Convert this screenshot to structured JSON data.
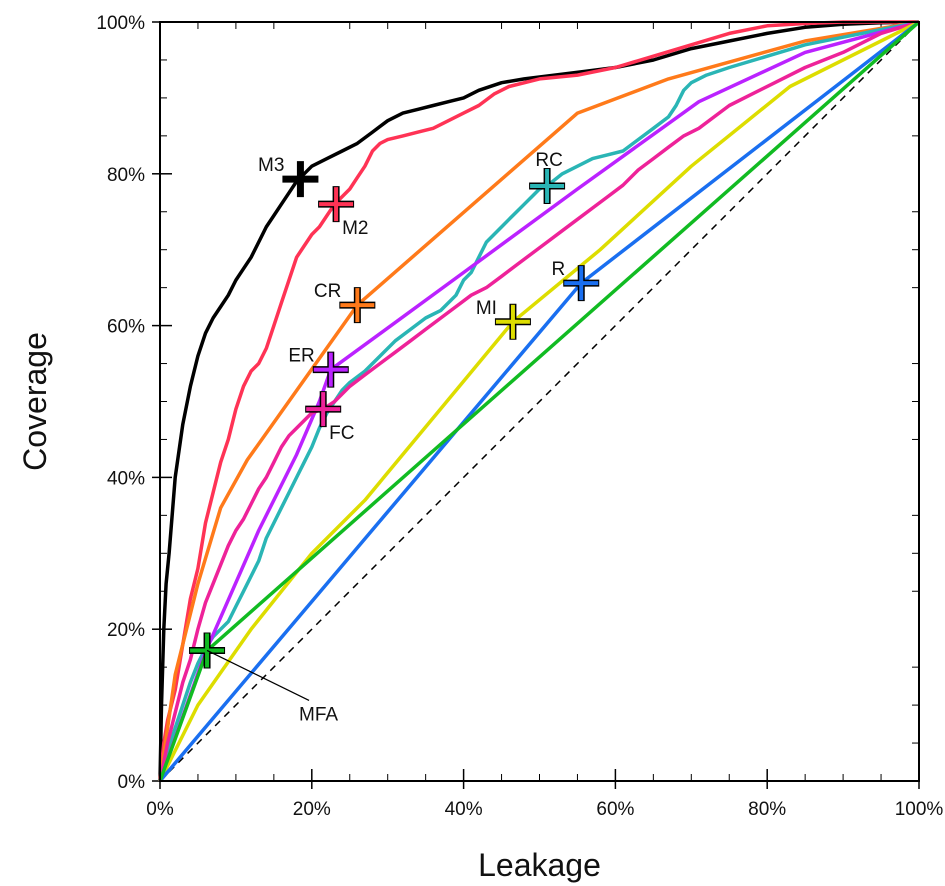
{
  "chart_data": {
    "type": "line",
    "xlabel": "Leakage",
    "ylabel": "Coverage",
    "xlim": [
      0,
      100
    ],
    "ylim": [
      0,
      100
    ],
    "x_ticks": [
      "0%",
      "20%",
      "40%",
      "60%",
      "80%",
      "100%"
    ],
    "y_ticks": [
      "0%",
      "20%",
      "40%",
      "60%",
      "80%",
      "100%"
    ],
    "grid": false,
    "reference_line": {
      "style": "dashed",
      "color": "#000000",
      "points": [
        [
          0,
          0
        ],
        [
          100,
          100
        ]
      ]
    },
    "series": [
      {
        "color": "#000000",
        "marker": {
          "label": "M3",
          "label_pos": "left",
          "x": 18.5,
          "y": 79.3
        },
        "points": [
          [
            0,
            0
          ],
          [
            0.2,
            10
          ],
          [
            0.5,
            20
          ],
          [
            0.8,
            26
          ],
          [
            1.2,
            30
          ],
          [
            2,
            40
          ],
          [
            3,
            47
          ],
          [
            4,
            52
          ],
          [
            5,
            56
          ],
          [
            6,
            59
          ],
          [
            7,
            61
          ],
          [
            8,
            62.5
          ],
          [
            9,
            64
          ],
          [
            10,
            66
          ],
          [
            11,
            67.5
          ],
          [
            12,
            69
          ],
          [
            13,
            71
          ],
          [
            14,
            73
          ],
          [
            15,
            74.5
          ],
          [
            16,
            76
          ],
          [
            17,
            77.5
          ],
          [
            18,
            79
          ],
          [
            19,
            80
          ],
          [
            20,
            81
          ],
          [
            22,
            82
          ],
          [
            24,
            83
          ],
          [
            26,
            84
          ],
          [
            28,
            85.5
          ],
          [
            30,
            87
          ],
          [
            32,
            88
          ],
          [
            34,
            88.5
          ],
          [
            36,
            89
          ],
          [
            38,
            89.5
          ],
          [
            40,
            90
          ],
          [
            42,
            91
          ],
          [
            45,
            92
          ],
          [
            48,
            92.5
          ],
          [
            52,
            93
          ],
          [
            56,
            93.5
          ],
          [
            60,
            94
          ],
          [
            65,
            95
          ],
          [
            70,
            96.5
          ],
          [
            75,
            97.5
          ],
          [
            80,
            98.5
          ],
          [
            85,
            99.3
          ],
          [
            90,
            99.7
          ],
          [
            95,
            99.9
          ],
          [
            100,
            100
          ]
        ]
      },
      {
        "color": "#ff3355",
        "marker": {
          "label": "M2",
          "label_pos": "below-right",
          "x": 23.2,
          "y": 76
        },
        "points": [
          [
            0,
            0
          ],
          [
            0.5,
            5
          ],
          [
            1,
            8
          ],
          [
            2,
            12
          ],
          [
            3,
            18
          ],
          [
            4,
            24
          ],
          [
            5,
            28
          ],
          [
            6,
            34
          ],
          [
            7,
            38
          ],
          [
            8,
            42
          ],
          [
            9,
            45
          ],
          [
            10,
            49
          ],
          [
            11,
            52
          ],
          [
            12,
            54
          ],
          [
            13,
            55
          ],
          [
            14,
            57
          ],
          [
            15,
            60
          ],
          [
            16,
            63
          ],
          [
            17,
            66
          ],
          [
            18,
            69
          ],
          [
            19,
            70.5
          ],
          [
            20,
            72
          ],
          [
            21,
            73
          ],
          [
            22,
            74.5
          ],
          [
            23,
            76
          ],
          [
            24,
            77
          ],
          [
            25,
            78
          ],
          [
            26,
            79.5
          ],
          [
            27,
            81
          ],
          [
            28,
            83
          ],
          [
            29,
            84
          ],
          [
            30,
            84.5
          ],
          [
            32,
            85
          ],
          [
            34,
            85.5
          ],
          [
            36,
            86
          ],
          [
            38,
            87
          ],
          [
            40,
            88
          ],
          [
            42,
            89
          ],
          [
            44,
            90.5
          ],
          [
            46,
            91.5
          ],
          [
            50,
            92.5
          ],
          [
            55,
            93
          ],
          [
            60,
            94
          ],
          [
            65,
            95.5
          ],
          [
            70,
            97
          ],
          [
            75,
            98.5
          ],
          [
            80,
            99.5
          ],
          [
            85,
            99.8
          ],
          [
            90,
            100
          ],
          [
            100,
            100
          ]
        ]
      },
      {
        "color": "#ff7a1a",
        "marker": {
          "label": "CR",
          "label_pos": "left",
          "x": 26,
          "y": 62.7
        },
        "points": [
          [
            0,
            0
          ],
          [
            2,
            14
          ],
          [
            5,
            26
          ],
          [
            8,
            36
          ],
          [
            11.5,
            42.3
          ],
          [
            26,
            62.7
          ],
          [
            55,
            88
          ],
          [
            67,
            92.5
          ],
          [
            85,
            97.5
          ],
          [
            100,
            100
          ]
        ]
      },
      {
        "color": "#2ab5b5",
        "marker": {
          "label": "RC",
          "label_pos": "above",
          "x": 51,
          "y": 78.4
        },
        "points": [
          [
            0,
            0
          ],
          [
            1,
            4
          ],
          [
            2,
            7
          ],
          [
            3,
            10
          ],
          [
            4,
            13
          ],
          [
            5,
            15.5
          ],
          [
            6,
            17.5
          ],
          [
            7,
            19
          ],
          [
            8,
            20
          ],
          [
            9,
            21
          ],
          [
            10,
            23
          ],
          [
            11,
            25
          ],
          [
            12,
            27
          ],
          [
            13,
            29
          ],
          [
            14,
            32
          ],
          [
            15,
            34
          ],
          [
            16,
            36
          ],
          [
            17,
            38
          ],
          [
            18,
            40
          ],
          [
            19,
            42
          ],
          [
            20,
            44
          ],
          [
            21,
            46.5
          ],
          [
            22,
            48.5
          ],
          [
            23,
            50
          ],
          [
            24,
            51.5
          ],
          [
            25,
            52.5
          ],
          [
            27,
            54
          ],
          [
            29,
            56
          ],
          [
            31,
            58
          ],
          [
            33,
            59.5
          ],
          [
            35,
            61
          ],
          [
            37,
            62
          ],
          [
            39,
            64
          ],
          [
            40,
            66
          ],
          [
            41,
            67
          ],
          [
            42,
            69
          ],
          [
            43,
            71
          ],
          [
            44,
            72
          ],
          [
            45,
            73
          ],
          [
            46,
            74
          ],
          [
            47,
            75
          ],
          [
            48,
            76
          ],
          [
            49,
            77
          ],
          [
            50,
            78
          ],
          [
            51,
            78.4
          ],
          [
            53,
            80
          ],
          [
            55,
            81
          ],
          [
            57,
            82
          ],
          [
            59,
            82.5
          ],
          [
            61,
            83
          ],
          [
            63,
            84.5
          ],
          [
            65,
            86
          ],
          [
            67,
            87.5
          ],
          [
            68,
            89
          ],
          [
            69,
            91
          ],
          [
            70,
            92
          ],
          [
            72,
            93
          ],
          [
            75,
            94
          ],
          [
            80,
            95.5
          ],
          [
            85,
            97
          ],
          [
            90,
            98
          ],
          [
            95,
            99
          ],
          [
            100,
            100
          ]
        ]
      },
      {
        "color": "#bb22ff",
        "marker": {
          "label": "ER",
          "label_pos": "left",
          "x": 22.5,
          "y": 54.2
        },
        "points": [
          [
            0,
            0
          ],
          [
            6,
            17
          ],
          [
            13,
            33
          ],
          [
            18,
            43
          ],
          [
            21,
            50
          ],
          [
            22.5,
            54.2
          ],
          [
            40,
            67
          ],
          [
            55,
            78
          ],
          [
            71,
            89.5
          ],
          [
            85,
            96
          ],
          [
            100,
            100
          ]
        ]
      },
      {
        "color": "#ee2299",
        "marker": {
          "label": "FC",
          "label_pos": "below-right",
          "x": 21.5,
          "y": 49
        },
        "points": [
          [
            0,
            0
          ],
          [
            1,
            5
          ],
          [
            2,
            9
          ],
          [
            3,
            13
          ],
          [
            4,
            16
          ],
          [
            5,
            20
          ],
          [
            6,
            23.5
          ],
          [
            7,
            26
          ],
          [
            8,
            28.5
          ],
          [
            9,
            31
          ],
          [
            10,
            33
          ],
          [
            11,
            34.5
          ],
          [
            12,
            36.5
          ],
          [
            13,
            38.5
          ],
          [
            14,
            40
          ],
          [
            15,
            42
          ],
          [
            16,
            44
          ],
          [
            17,
            45.5
          ],
          [
            18,
            46.5
          ],
          [
            19,
            47.5
          ],
          [
            20,
            48.5
          ],
          [
            21.5,
            49
          ],
          [
            23,
            50
          ],
          [
            25,
            52
          ],
          [
            27,
            53.5
          ],
          [
            29,
            55
          ],
          [
            31,
            56.5
          ],
          [
            33,
            58
          ],
          [
            35,
            59.5
          ],
          [
            37,
            61
          ],
          [
            39,
            62.5
          ],
          [
            41,
            64
          ],
          [
            43,
            65
          ],
          [
            45,
            66.5
          ],
          [
            47,
            68
          ],
          [
            49,
            69.5
          ],
          [
            51,
            71
          ],
          [
            53,
            72.5
          ],
          [
            55,
            74
          ],
          [
            57,
            75.5
          ],
          [
            59,
            77
          ],
          [
            61,
            78.5
          ],
          [
            63,
            80.5
          ],
          [
            65,
            82
          ],
          [
            67,
            83.5
          ],
          [
            69,
            85
          ],
          [
            71,
            86
          ],
          [
            73,
            87.5
          ],
          [
            75,
            89
          ],
          [
            78,
            90.5
          ],
          [
            81,
            92
          ],
          [
            85,
            94
          ],
          [
            90,
            96
          ],
          [
            95,
            98.5
          ],
          [
            100,
            100
          ]
        ]
      },
      {
        "color": "#dddd00",
        "marker": {
          "label": "MI",
          "label_pos": "left",
          "x": 46.5,
          "y": 60.5
        },
        "points": [
          [
            0,
            0
          ],
          [
            5,
            10
          ],
          [
            12,
            20
          ],
          [
            20,
            30
          ],
          [
            27,
            37
          ],
          [
            46.5,
            60.5
          ],
          [
            58,
            70
          ],
          [
            70,
            81
          ],
          [
            83,
            91.5
          ],
          [
            100,
            100
          ]
        ]
      },
      {
        "color": "#1a6ff0",
        "marker": {
          "label": "R",
          "label_pos": "left",
          "x": 55.5,
          "y": 65.6
        },
        "points": [
          [
            0,
            0
          ],
          [
            55.5,
            65.6
          ],
          [
            100,
            100
          ]
        ]
      },
      {
        "color": "#11bb22",
        "marker": {
          "label": "MFA",
          "label_pos": "callout",
          "x": 6.2,
          "y": 17.2
        },
        "points": [
          [
            0,
            0
          ],
          [
            6.2,
            17.2
          ],
          [
            100,
            100
          ]
        ]
      }
    ]
  }
}
